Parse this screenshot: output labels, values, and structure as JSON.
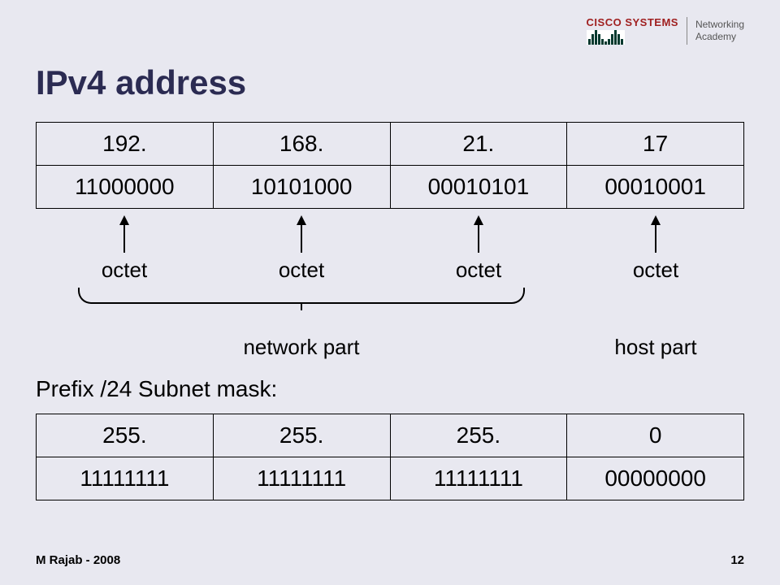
{
  "logo": {
    "company": "CISCO SYSTEMS",
    "program_line1": "Networking",
    "program_line2": "Academy",
    "bar_heights": [
      7,
      13,
      18,
      13,
      7,
      4,
      7,
      13,
      18,
      13,
      7
    ],
    "bar_color": "#053a2f",
    "company_color": "#a02020"
  },
  "title": "IPv4 address",
  "title_color": "#2b2b52",
  "background_color": "#e8e8f0",
  "ip_table": {
    "decimal": [
      "192.",
      "168.",
      "21.",
      "17"
    ],
    "binary": [
      "11000000",
      "10101000",
      "00010101",
      "00010001"
    ],
    "col_count": 4
  },
  "octet_label": "octet",
  "network_label": "network part",
  "host_label": "host part",
  "prefix_text": "Prefix  /24  Subnet mask:",
  "mask_table": {
    "decimal": [
      "255.",
      "255.",
      "255.",
      "0"
    ],
    "binary": [
      "11111111",
      "11111111",
      "11111111",
      "00000000"
    ],
    "col_count": 4
  },
  "footer": {
    "author": "M Rajab - 2008",
    "page": "12"
  },
  "brace": {
    "network_left_pct": 6,
    "network_width_pct": 63,
    "host_left_pct": 78,
    "host_width_pct": 0
  }
}
